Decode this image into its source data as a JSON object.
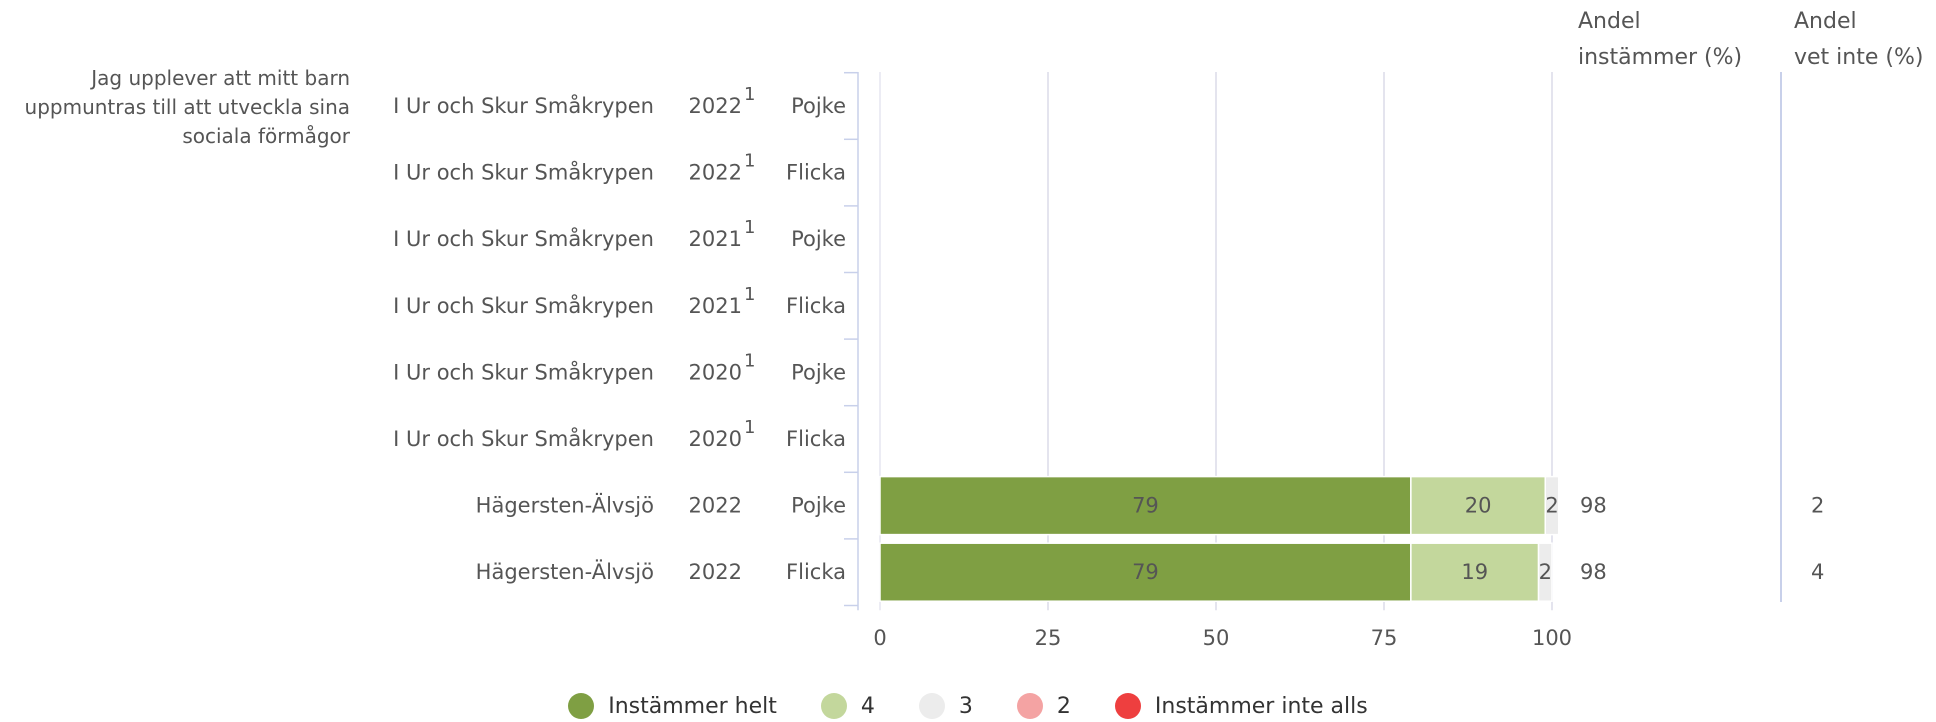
{
  "question": [
    "Jag upplever att mitt barn",
    "uppmuntras till att utveckla sina",
    "sociala förmågor"
  ],
  "columns": {
    "share_agree": [
      "Andel",
      "instämmer (%)"
    ],
    "share_dont_know": [
      "Andel",
      "vet inte (%)"
    ]
  },
  "colors": {
    "Instämmer helt": "#7f9f43",
    "4": "#c3d79c",
    "3": "#ececec",
    "2": "#f4a3a3",
    "Instämmer inte alls": "#ee3f3f"
  },
  "chart_data": {
    "type": "bar",
    "orientation": "horizontal",
    "stacked": true,
    "xlim": [
      0,
      100
    ],
    "xticks": [
      0,
      25,
      50,
      75,
      100
    ],
    "legend": [
      "Instämmer helt",
      "4",
      "3",
      "2",
      "Instämmer inte alls"
    ],
    "legend_position": "bottom",
    "rows": [
      {
        "unit": "I Ur och Skur Småkrypen",
        "year": "2022",
        "note": "1",
        "gender": "Pojke",
        "values": [],
        "share_agree": "",
        "share_dont_know": ""
      },
      {
        "unit": "I Ur och Skur Småkrypen",
        "year": "2022",
        "note": "1",
        "gender": "Flicka",
        "values": [],
        "share_agree": "",
        "share_dont_know": ""
      },
      {
        "unit": "I Ur och Skur Småkrypen",
        "year": "2021",
        "note": "1",
        "gender": "Pojke",
        "values": [],
        "share_agree": "",
        "share_dont_know": ""
      },
      {
        "unit": "I Ur och Skur Småkrypen",
        "year": "2021",
        "note": "1",
        "gender": "Flicka",
        "values": [],
        "share_agree": "",
        "share_dont_know": ""
      },
      {
        "unit": "I Ur och Skur Småkrypen",
        "year": "2020",
        "note": "1",
        "gender": "Pojke",
        "values": [],
        "share_agree": "",
        "share_dont_know": ""
      },
      {
        "unit": "I Ur och Skur Småkrypen",
        "year": "2020",
        "note": "1",
        "gender": "Flicka",
        "values": [],
        "share_agree": "",
        "share_dont_know": ""
      },
      {
        "unit": "Hägersten-Älvsjö",
        "year": "2022",
        "note": "",
        "gender": "Pojke",
        "values": [
          79,
          20,
          2,
          0,
          0
        ],
        "share_agree": "98",
        "share_dont_know": "2"
      },
      {
        "unit": "Hägersten-Älvsjö",
        "year": "2022",
        "note": "",
        "gender": "Flicka",
        "values": [
          79,
          19,
          2,
          0,
          0
        ],
        "share_agree": "98",
        "share_dont_know": "4"
      }
    ]
  }
}
